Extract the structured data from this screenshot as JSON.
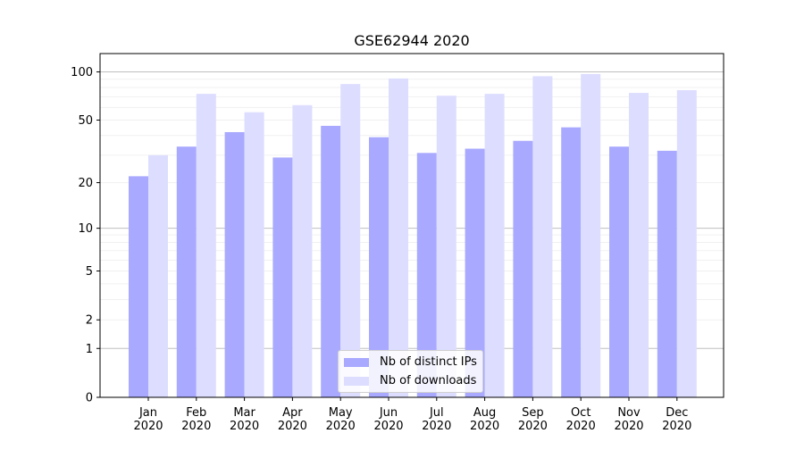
{
  "chart_data": {
    "type": "bar",
    "title": "GSE62944 2020",
    "xlabel": "",
    "ylabel": "",
    "yscale": "symlog",
    "ylim": [
      0,
      130
    ],
    "yticks": [
      0,
      1,
      2,
      5,
      10,
      20,
      50,
      100
    ],
    "ytick_labels": [
      "0",
      "1",
      "2",
      "5",
      "10",
      "20",
      "50",
      "100"
    ],
    "grid": "horizontal",
    "legend_position": "bottom-center",
    "categories": [
      "Jan\n2020",
      "Feb\n2020",
      "Mar\n2020",
      "Apr\n2020",
      "May\n2020",
      "Jun\n2020",
      "Jul\n2020",
      "Aug\n2020",
      "Sep\n2020",
      "Oct\n2020",
      "Nov\n2020",
      "Dec\n2020"
    ],
    "series": [
      {
        "name": "Nb of distinct IPs",
        "color": "#a9a9ff",
        "values": [
          22,
          34,
          42,
          29,
          46,
          39,
          31,
          33,
          37,
          45,
          34,
          32
        ]
      },
      {
        "name": "Nb of downloads",
        "color": "#ddddff",
        "values": [
          30,
          73,
          56,
          62,
          84,
          91,
          71,
          73,
          94,
          97,
          74,
          77
        ]
      }
    ]
  }
}
